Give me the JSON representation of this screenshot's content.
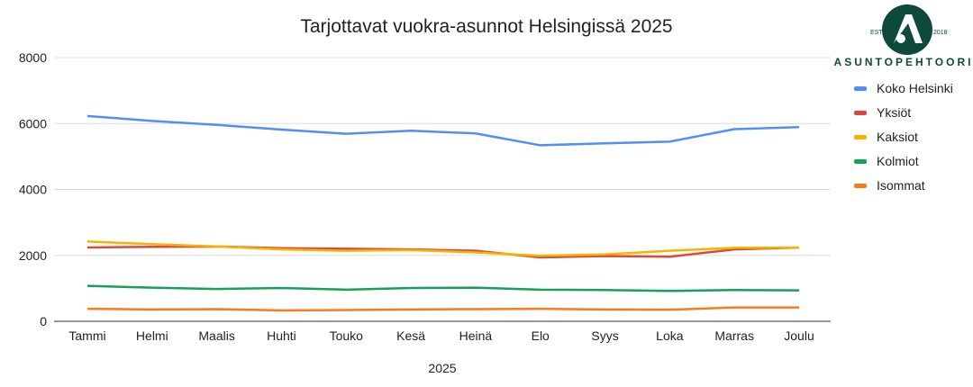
{
  "chart_data": {
    "type": "line",
    "title": "Tarjottavat vuokra-asunnot Helsingissä 2025",
    "xlabel": "2025",
    "ylabel": "",
    "ylim": [
      0,
      8000
    ],
    "yticks": [
      0,
      2000,
      4000,
      6000,
      8000
    ],
    "grid": true,
    "legend_position": "right",
    "categories": [
      "Tammi",
      "Helmi",
      "Maalis",
      "Huhti",
      "Touko",
      "Kesä",
      "Heinä",
      "Elo",
      "Syys",
      "Loka",
      "Marras",
      "Joulu"
    ],
    "series": [
      {
        "name": "Koko Helsinki",
        "color": "#4f8ff7",
        "values": [
          6230,
          6080,
          5960,
          5815,
          5690,
          5780,
          5700,
          5340,
          5400,
          5450,
          5830,
          5890
        ]
      },
      {
        "name": "Yksiöt",
        "color": "#e0463c",
        "values": [
          2240,
          2260,
          2270,
          2220,
          2200,
          2180,
          2140,
          1940,
          1980,
          1960,
          2180,
          2240
        ]
      },
      {
        "name": "Kaksiot",
        "color": "#f5b400",
        "values": [
          2420,
          2340,
          2270,
          2180,
          2140,
          2160,
          2090,
          1990,
          2030,
          2140,
          2230,
          2240
        ]
      },
      {
        "name": "Kolmiot",
        "color": "#17a058",
        "values": [
          1075,
          1020,
          980,
          1010,
          960,
          1010,
          1020,
          960,
          950,
          920,
          950,
          940
        ]
      },
      {
        "name": "Isommat",
        "color": "#fb7b1b",
        "values": [
          380,
          360,
          370,
          330,
          340,
          360,
          370,
          380,
          360,
          350,
          420,
          420
        ]
      }
    ]
  },
  "logo": {
    "est": "EST.",
    "year": "2018",
    "name": "ASUNTOPEHTOORI",
    "color": "#0d4a3a"
  }
}
